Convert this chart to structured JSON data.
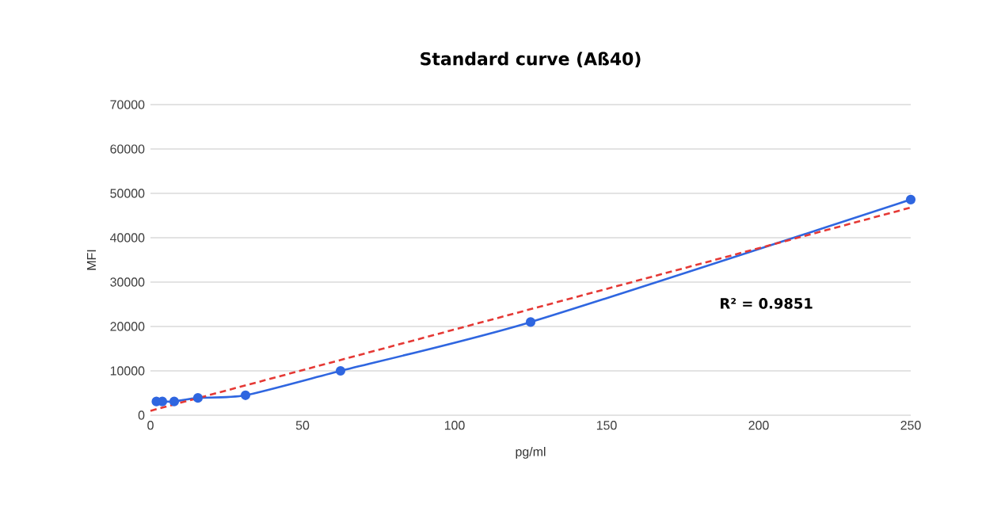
{
  "chart_data": {
    "type": "line",
    "title": "Standard curve (Aß40)",
    "xlabel": "pg/ml",
    "ylabel": "MFI",
    "x": [
      1.95,
      3.9,
      7.8,
      15.6,
      31.25,
      62.5,
      125,
      250
    ],
    "series": [
      {
        "color": "#2f66e0",
        "marker": "circle",
        "line_style": "solid",
        "values": [
          3100,
          3100,
          3100,
          3900,
          4500,
          10000,
          21000,
          48600
        ]
      },
      {
        "color": "#e53935",
        "marker": "none",
        "line_style": "dashed",
        "x": [
          0,
          250
        ],
        "values": [
          1000,
          46800
        ]
      }
    ],
    "xlim": [
      0,
      250
    ],
    "xticks": [
      0,
      50,
      100,
      150,
      200,
      250
    ],
    "ylim": [
      0,
      70000
    ],
    "yticks": [
      0,
      10000,
      20000,
      30000,
      40000,
      50000,
      60000,
      70000
    ],
    "grid": "y",
    "annotations": [
      "R² = 0.9851"
    ]
  }
}
